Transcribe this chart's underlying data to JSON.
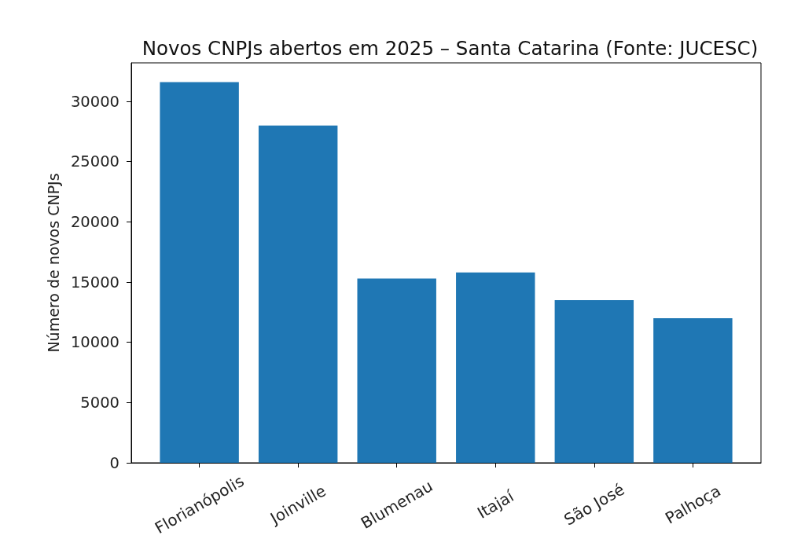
{
  "chart_data": {
    "type": "bar",
    "title": "Novos CNPJs abertos em 2025 – Santa Catarina (Fonte: JUCESC)",
    "ylabel": "Número de novos CNPJs",
    "categories": [
      "Florianópolis",
      "Joinville",
      "Blumenau",
      "Itajaí",
      "São José",
      "Palhoça"
    ],
    "values": [
      31600,
      28000,
      15300,
      15800,
      13500,
      12000
    ],
    "color": "#1f77b4",
    "ylim": [
      0,
      33200
    ],
    "yticks": [
      0,
      5000,
      10000,
      15000,
      20000,
      25000,
      30000
    ],
    "grid": false
  }
}
